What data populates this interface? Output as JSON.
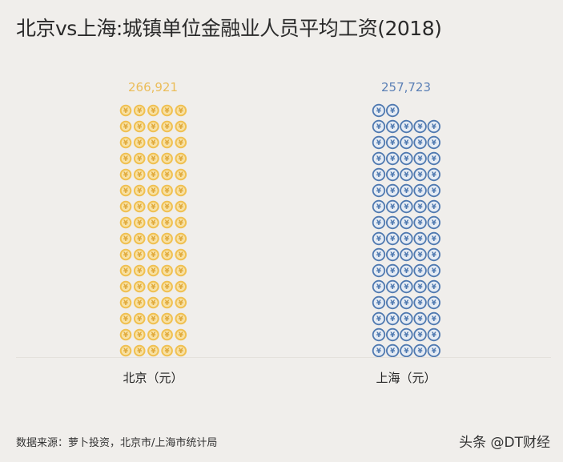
{
  "title": "北京vs上海:城镇单位金融业人员平均工资(2018)",
  "chart_data": {
    "type": "pictogram",
    "title": "北京vs上海:城镇单位金融业人员平均工资(2018)",
    "icon": "yuan-coin-icon",
    "categories": [
      "北京（元）",
      "上海（元）"
    ],
    "values": [
      266921,
      257723
    ],
    "value_labels": [
      "266,921",
      "257,723"
    ],
    "colors": [
      "#f0c050",
      "#4f79b0"
    ]
  },
  "footer": {
    "source": "数据来源：萝卜投资，北京市/上海市统计局",
    "watermark": "头条 @DT财经"
  }
}
